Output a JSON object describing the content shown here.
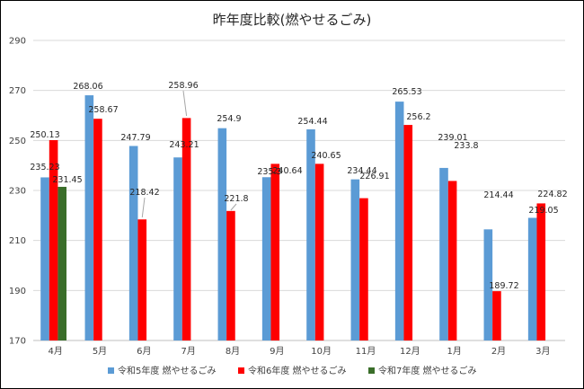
{
  "chart_data": {
    "type": "bar",
    "title": "昨年度比較(燃やせるごみ)",
    "categories": [
      "4月",
      "5月",
      "6月",
      "7月",
      "8月",
      "9月",
      "10月",
      "11月",
      "12月",
      "1月",
      "2月",
      "3月"
    ],
    "series": [
      {
        "name": "令和5年度 燃やせるごみ",
        "color": "#5b9bd5",
        "values": [
          235.23,
          268.06,
          247.79,
          243.21,
          254.9,
          235.3,
          254.44,
          234.44,
          265.53,
          239.01,
          214.44,
          219.05
        ],
        "labels": [
          "235.23",
          "268.06",
          "247.79",
          "243.21",
          "254.9",
          "235.3",
          "254.44",
          "234.44",
          "265.53",
          "239.01",
          "214.44",
          "219.05"
        ]
      },
      {
        "name": "令和6年度 燃やせるごみ",
        "color": "#ff0000",
        "values": [
          250.13,
          258.67,
          218.42,
          258.96,
          221.8,
          240.64,
          240.65,
          226.91,
          256.2,
          233.8,
          189.72,
          224.82
        ],
        "labels": [
          "250.13",
          "258.67",
          "218.42",
          "258.96",
          "221.8",
          "240.64",
          "240.65",
          "226.91",
          "256.2",
          "233.8",
          "189.72",
          "224.82"
        ]
      },
      {
        "name": "令和7年度 燃やせるごみ",
        "color": "#3a6e2a",
        "values": [
          231.45,
          null,
          null,
          null,
          null,
          null,
          null,
          null,
          null,
          null,
          null,
          null
        ],
        "labels": [
          "231.45",
          "",
          "",
          "",
          "",
          "",
          "",
          "",
          "",
          "",
          "",
          ""
        ]
      }
    ],
    "ylim": [
      170,
      290
    ],
    "yticks": [
      170,
      190,
      210,
      230,
      250,
      270,
      290
    ],
    "grid": true,
    "legend": "bottom"
  }
}
